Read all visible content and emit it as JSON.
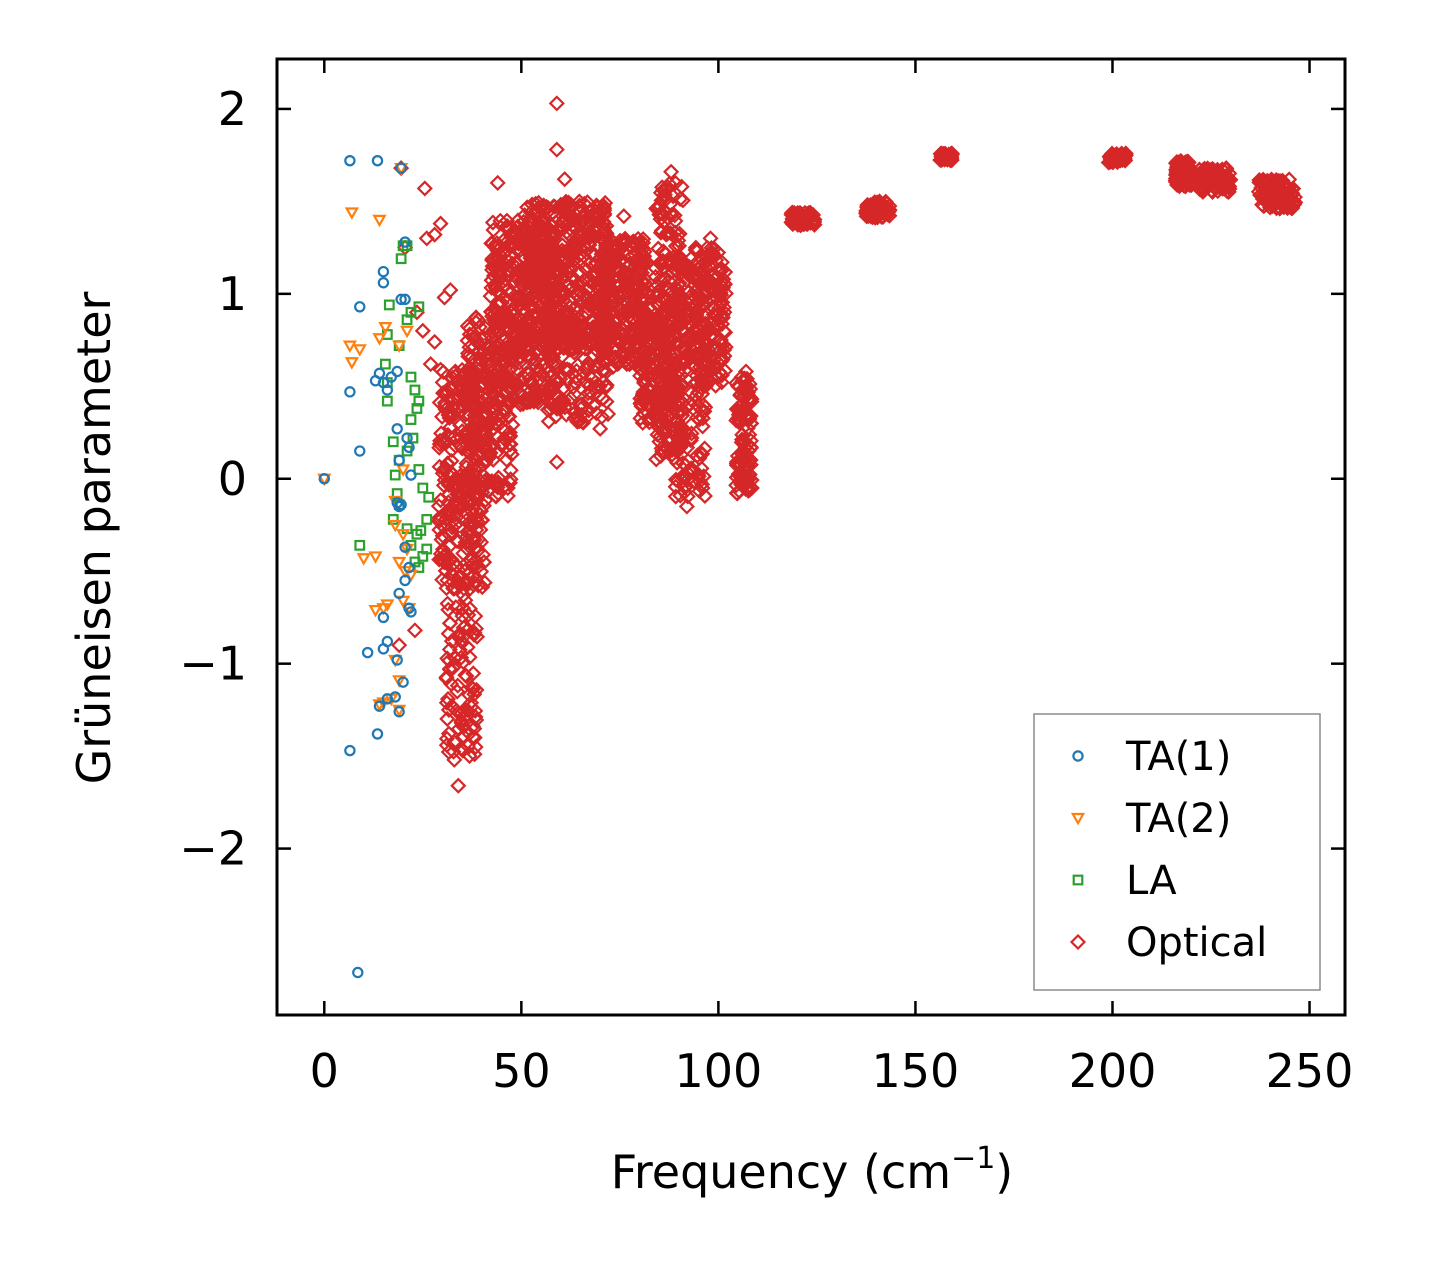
{
  "chart_data": {
    "type": "scatter",
    "title": "",
    "xlabel": "Frequency (cm",
    "xlabel_sup": "−1",
    "xlabel_close": ")",
    "ylabel": "Grüneisen parameter",
    "xlim": [
      -12,
      259
    ],
    "ylim": [
      -2.9,
      2.27
    ],
    "x_ticks": [
      0,
      50,
      100,
      150,
      200,
      250
    ],
    "x_tick_labels": [
      "0",
      "50",
      "100",
      "150",
      "200",
      "250"
    ],
    "y_ticks": [
      2,
      1,
      0,
      -1,
      -2
    ],
    "y_tick_labels": [
      "2",
      "1",
      "0",
      "−1",
      "−2"
    ],
    "grid": false,
    "legend_position": "lower-right",
    "series": [
      {
        "name": "TA(1)",
        "marker": "circle",
        "color": "#1f77b4",
        "points": [
          [
            0,
            0
          ],
          [
            6.5,
            1.72
          ],
          [
            13.5,
            1.72
          ],
          [
            9,
            0.93
          ],
          [
            15,
            1.12
          ],
          [
            15,
            1.06
          ],
          [
            6.5,
            0.47
          ],
          [
            9,
            0.15
          ],
          [
            13,
            0.53
          ],
          [
            14,
            0.57
          ],
          [
            15,
            0.52
          ],
          [
            16,
            0.48
          ],
          [
            17,
            0.55
          ],
          [
            18.5,
            0.58
          ],
          [
            18.5,
            0.27
          ],
          [
            19.5,
            0.97
          ],
          [
            20.5,
            0.97
          ],
          [
            19,
            0.1
          ],
          [
            21,
            0.22
          ],
          [
            21.5,
            0.17
          ],
          [
            22,
            0.02
          ],
          [
            18.5,
            -0.13
          ],
          [
            19.5,
            -0.14
          ],
          [
            19,
            -0.15
          ],
          [
            20.5,
            -0.37
          ],
          [
            21.5,
            -0.48
          ],
          [
            20.5,
            -0.55
          ],
          [
            19,
            -0.62
          ],
          [
            22,
            -0.72
          ],
          [
            15,
            -0.75
          ],
          [
            16,
            -0.88
          ],
          [
            11,
            -0.94
          ],
          [
            15,
            -0.92
          ],
          [
            18.5,
            -0.98
          ],
          [
            20,
            -1.1
          ],
          [
            16,
            -1.19
          ],
          [
            14,
            -1.23
          ],
          [
            18,
            -1.18
          ],
          [
            19,
            -1.26
          ],
          [
            13.5,
            -1.38
          ],
          [
            6.5,
            -1.47
          ],
          [
            8.5,
            -2.67
          ],
          [
            20.5,
            1.28
          ],
          [
            19.5,
            1.68
          ],
          [
            21.5,
            -0.7
          ]
        ]
      },
      {
        "name": "TA(2)",
        "marker": "triangle",
        "color": "#ff7f0e",
        "points": [
          [
            0,
            0
          ],
          [
            7,
            1.44
          ],
          [
            14,
            1.4
          ],
          [
            6.5,
            0.72
          ],
          [
            7,
            0.63
          ],
          [
            9,
            0.7
          ],
          [
            14,
            0.76
          ],
          [
            15.5,
            0.82
          ],
          [
            21,
            0.8
          ],
          [
            19,
            0.72
          ],
          [
            18,
            -0.12
          ],
          [
            18,
            -0.25
          ],
          [
            20,
            -0.3
          ],
          [
            21,
            -0.38
          ],
          [
            19,
            -0.45
          ],
          [
            10,
            -0.43
          ],
          [
            13,
            -0.42
          ],
          [
            20.5,
            -0.5
          ],
          [
            22,
            -0.52
          ],
          [
            13,
            -0.71
          ],
          [
            15,
            -0.7
          ],
          [
            16,
            -0.68
          ],
          [
            20,
            -0.66
          ],
          [
            21.5,
            -0.7
          ],
          [
            18,
            -0.98
          ],
          [
            19,
            -1.09
          ],
          [
            15,
            -1.21
          ],
          [
            17,
            -1.19
          ],
          [
            19,
            -1.25
          ],
          [
            14,
            -1.22
          ],
          [
            19.5,
            1.68
          ],
          [
            20,
            0.05
          ]
        ]
      },
      {
        "name": "LA",
        "marker": "square",
        "color": "#2ca02c",
        "points": [
          [
            20,
            1.26
          ],
          [
            21,
            1.26
          ],
          [
            19.5,
            1.19
          ],
          [
            24,
            0.93
          ],
          [
            22,
            0.9
          ],
          [
            21,
            0.86
          ],
          [
            19,
            0.72
          ],
          [
            16.5,
            0.94
          ],
          [
            16,
            0.78
          ],
          [
            15.5,
            0.62
          ],
          [
            16,
            0.52
          ],
          [
            16,
            0.42
          ],
          [
            22,
            0.55
          ],
          [
            23,
            0.48
          ],
          [
            24,
            0.42
          ],
          [
            23.5,
            0.38
          ],
          [
            22,
            0.32
          ],
          [
            22.5,
            0.22
          ],
          [
            21,
            0.15
          ],
          [
            19,
            0.1
          ],
          [
            17.5,
            0.2
          ],
          [
            18,
            0.02
          ],
          [
            18.5,
            -0.08
          ],
          [
            19,
            -0.14
          ],
          [
            17.5,
            -0.22
          ],
          [
            21,
            -0.27
          ],
          [
            23.5,
            -0.3
          ],
          [
            24.5,
            -0.28
          ],
          [
            22,
            -0.36
          ],
          [
            23,
            -0.45
          ],
          [
            25,
            -0.42
          ],
          [
            24,
            -0.48
          ],
          [
            26,
            -0.38
          ],
          [
            9,
            -0.36
          ],
          [
            25,
            -0.05
          ],
          [
            26.5,
            -0.1
          ],
          [
            24,
            0.05
          ],
          [
            26,
            -0.22
          ]
        ]
      },
      {
        "name": "Optical",
        "marker": "diamond",
        "color": "#d62728",
        "points": [
          [
            59,
            2.03
          ],
          [
            59,
            1.78
          ],
          [
            19.5,
            1.68
          ],
          [
            25.5,
            1.57
          ],
          [
            44,
            1.6
          ],
          [
            61,
            1.62
          ],
          [
            20.5,
            1.25
          ],
          [
            26,
            1.3
          ],
          [
            28,
            1.32
          ],
          [
            29.5,
            1.38
          ],
          [
            23.5,
            0.9
          ],
          [
            25,
            0.8
          ],
          [
            27,
            0.62
          ],
          [
            28,
            0.74
          ],
          [
            30.5,
            0.98
          ],
          [
            32,
            1.02
          ],
          [
            19,
            -0.9
          ],
          [
            23,
            -0.82
          ],
          [
            31,
            -1.08
          ],
          [
            33,
            -1.52
          ],
          [
            34,
            -1.66
          ],
          [
            59,
            0.09
          ],
          [
            70,
            0.27
          ],
          [
            72,
            0.35
          ],
          [
            92,
            -0.15
          ],
          [
            96,
            -0.05
          ],
          [
            107,
            0.58
          ],
          [
            76,
            1.42
          ],
          [
            88,
            1.66
          ],
          [
            87,
            1.58
          ],
          [
            98,
            1.3
          ]
        ],
        "clusters": [
          {
            "x": [
              29,
              41
            ],
            "y": [
              -0.6,
              0.6
            ],
            "n": 320
          },
          {
            "x": [
              31,
              39
            ],
            "y": [
              -1.5,
              -0.6
            ],
            "n": 90
          },
          {
            "x": [
              36,
              48
            ],
            "y": [
              -0.1,
              0.9
            ],
            "n": 200
          },
          {
            "x": [
              42,
              58
            ],
            "y": [
              0.4,
              1.4
            ],
            "n": 380
          },
          {
            "x": [
              50,
              72
            ],
            "y": [
              0.7,
              1.5
            ],
            "n": 450
          },
          {
            "x": [
              56,
              72
            ],
            "y": [
              0.3,
              0.9
            ],
            "n": 160
          },
          {
            "x": [
              70,
              82
            ],
            "y": [
              0.6,
              1.3
            ],
            "n": 260
          },
          {
            "x": [
              80,
              88
            ],
            "y": [
              0.3,
              1.0
            ],
            "n": 170
          },
          {
            "x": [
              84,
              91
            ],
            "y": [
              0.1,
              1.6
            ],
            "n": 220
          },
          {
            "x": [
              89,
              97
            ],
            "y": [
              -0.1,
              1.2
            ],
            "n": 170
          },
          {
            "x": [
              94,
              102
            ],
            "y": [
              0.5,
              1.25
            ],
            "n": 160
          },
          {
            "x": [
              104.5,
              108.5
            ],
            "y": [
              -0.08,
              0.55
            ],
            "n": 120
          },
          {
            "x": [
              118.5,
              124.5
            ],
            "y": [
              1.37,
              1.44
            ],
            "n": 70
          },
          {
            "x": [
              137.5,
              143.5
            ],
            "y": [
              1.41,
              1.5
            ],
            "n": 70
          },
          {
            "x": [
              156,
              159.5
            ],
            "y": [
              1.72,
              1.76
            ],
            "n": 40
          },
          {
            "x": [
              198.5,
              203.5
            ],
            "y": [
              1.71,
              1.76
            ],
            "n": 50
          },
          {
            "x": [
              216,
              220
            ],
            "y": [
              1.58,
              1.72
            ],
            "n": 70
          },
          {
            "x": [
              222,
              230
            ],
            "y": [
              1.55,
              1.68
            ],
            "n": 80
          },
          {
            "x": [
              237,
              246.5
            ],
            "y": [
              1.46,
              1.62
            ],
            "n": 100
          }
        ]
      }
    ]
  }
}
